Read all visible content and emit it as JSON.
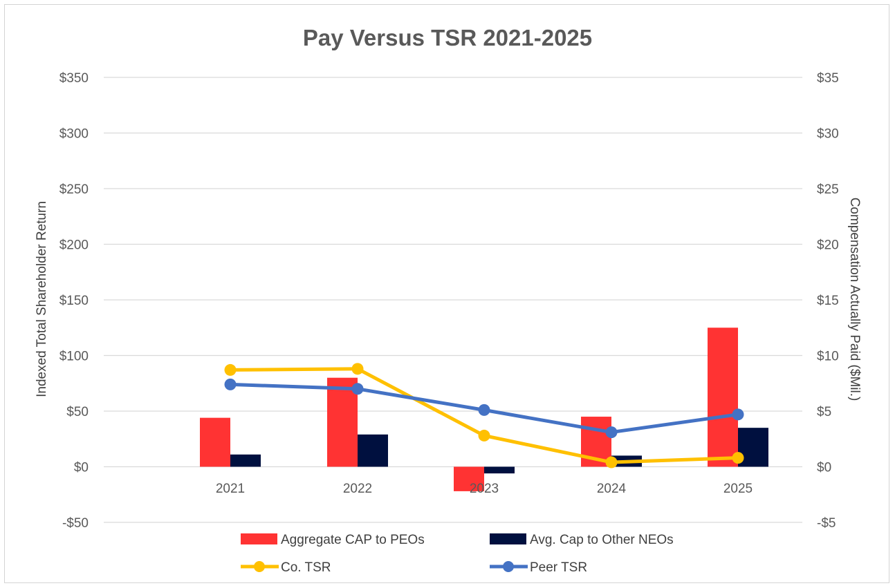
{
  "chart_data": {
    "type": "bar",
    "title": "Pay Versus TSR 2021-2025",
    "categories": [
      "2021",
      "2022",
      "2023",
      "2024",
      "2025"
    ],
    "y_left": {
      "label": "Indexed Total Shareholder Return",
      "range": [
        -50,
        350
      ],
      "ticks": [
        -50,
        0,
        50,
        100,
        150,
        200,
        250,
        300,
        350
      ],
      "tick_labels": [
        "-$50",
        "$0",
        "$50",
        "$100",
        "$150",
        "$200",
        "$250",
        "$300",
        "$350"
      ]
    },
    "y_right": {
      "label": "Compensation Actually Paid ($Mil.)",
      "range": [
        -5,
        35
      ],
      "ticks": [
        -5,
        0,
        5,
        10,
        15,
        20,
        25,
        30,
        35
      ],
      "tick_labels": [
        "-$5",
        "$0",
        "$5",
        "$10",
        "$15",
        "$20",
        "$25",
        "$30",
        "$35"
      ]
    },
    "grid": true,
    "legend_position": "bottom",
    "series": [
      {
        "name": "Aggregate CAP to PEOs",
        "kind": "bar",
        "axis": "right",
        "color": "#ff3333",
        "values": [
          4.4,
          8.0,
          -2.2,
          4.5,
          12.5
        ]
      },
      {
        "name": "Avg. Cap to Other NEOs",
        "kind": "bar",
        "axis": "right",
        "color": "#00103f",
        "values": [
          1.1,
          2.9,
          -0.6,
          1.0,
          3.5
        ]
      },
      {
        "name": "Co. TSR",
        "kind": "line",
        "axis": "left",
        "color": "#ffc000",
        "values": [
          87,
          88,
          28,
          4,
          8
        ]
      },
      {
        "name": "Peer TSR",
        "kind": "line",
        "axis": "left",
        "color": "#4472c4",
        "values": [
          74,
          70,
          51,
          31,
          47
        ]
      }
    ]
  }
}
